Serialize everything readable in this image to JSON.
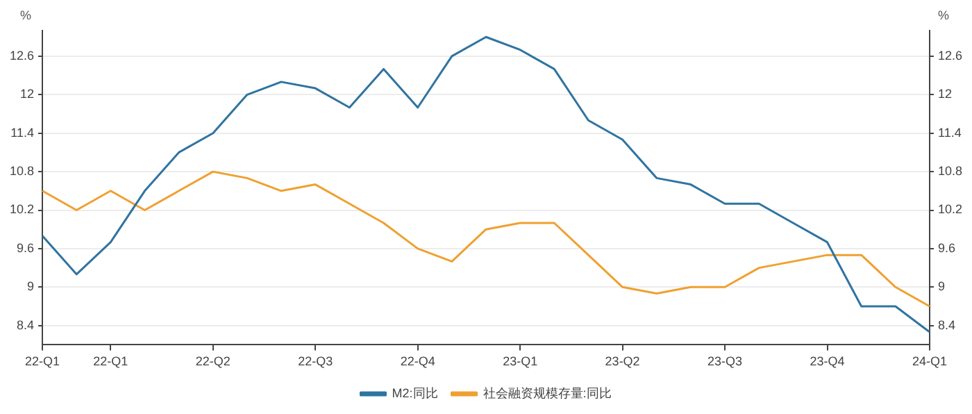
{
  "chart_data": {
    "type": "line",
    "categories": [
      "22-Q1",
      null,
      "22-Q1",
      null,
      null,
      "22-Q2",
      null,
      null,
      "22-Q3",
      null,
      null,
      "22-Q4",
      null,
      null,
      "23-Q1",
      null,
      null,
      "23-Q2",
      null,
      null,
      "23-Q3",
      null,
      null,
      "23-Q4",
      null,
      null,
      "24-Q1"
    ],
    "series": [
      {
        "name": "M2:同比",
        "color": "#2f74a0",
        "values": [
          9.8,
          9.2,
          9.7,
          10.5,
          11.1,
          11.4,
          12.0,
          12.2,
          12.1,
          11.8,
          12.4,
          11.8,
          12.6,
          12.9,
          12.7,
          12.4,
          11.6,
          11.3,
          10.7,
          10.6,
          10.3,
          10.3,
          10.0,
          9.7,
          8.7,
          8.7,
          8.3
        ]
      },
      {
        "name": "社会融资规模存量:同比",
        "color": "#f0a030",
        "values": [
          10.5,
          10.2,
          10.5,
          10.2,
          10.5,
          10.8,
          10.7,
          10.5,
          10.6,
          10.3,
          10.0,
          9.6,
          9.4,
          9.9,
          10.0,
          10.0,
          9.5,
          9.0,
          8.9,
          9.0,
          9.0,
          9.3,
          9.4,
          9.5,
          9.5,
          9.0,
          8.7
        ]
      }
    ],
    "ylabel": "%",
    "y2label": "%",
    "ylim": [
      8.1,
      13.0
    ],
    "yticks": [
      8.4,
      9,
      9.6,
      10.2,
      10.8,
      11.4,
      12,
      12.6
    ],
    "y2lim": [
      8.1,
      13.0
    ],
    "y2ticks": [
      8.4,
      9,
      9.6,
      10.2,
      10.8,
      11.4,
      12,
      12.6
    ],
    "grid": "y",
    "legend": "bottom",
    "marker": "none",
    "line_style": "solid"
  }
}
